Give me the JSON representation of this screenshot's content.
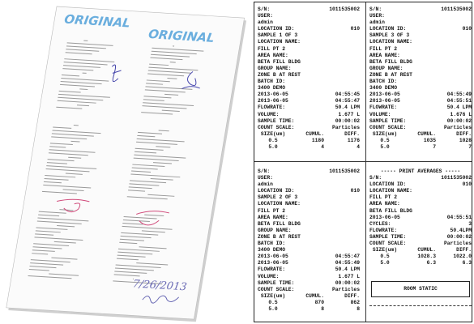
{
  "photo": {
    "stamps": [
      "ORIGINAL",
      "ORIGINAL"
    ],
    "handwritten_date": "7/26/2013"
  },
  "tickets": [
    {
      "lines": [
        [
          "S/N:",
          "1011535002"
        ],
        [
          "USER:"
        ],
        [
          "admin"
        ],
        [
          "LOCATION ID:",
          "010"
        ],
        [
          "SAMPLE 1 OF 3"
        ],
        [
          "LOCATION NAME:"
        ],
        [
          "FILL PT 2"
        ],
        [
          "AREA NAME:"
        ],
        [
          "BETA FILL BLDG"
        ],
        [
          "GROUP NAME:"
        ],
        [
          "ZONE B AT REST"
        ],
        [
          "BATCH ID:"
        ],
        [
          "3400 DEMO"
        ],
        [
          "2013-06-05",
          "04:55:45"
        ],
        [
          "2013-06-05",
          "04:55:47"
        ],
        [
          "FLOWRATE:",
          "50.4 LPM"
        ],
        [
          "VOLUME:",
          "1.677 L"
        ],
        [
          "SAMPLE TIME:",
          "00:00:02"
        ],
        [
          "COUNT SCALE:",
          "Particles"
        ],
        [
          "SIZE(um)",
          "CUMUL.",
          "DIFF."
        ],
        [
          "0.5",
          "1180",
          "1176"
        ],
        [
          "5.0",
          "4",
          "4"
        ]
      ]
    },
    {
      "lines": [
        [
          "S/N:",
          "1011535002"
        ],
        [
          "USER:"
        ],
        [
          "admin"
        ],
        [
          "LOCATION ID:",
          "010"
        ],
        [
          "SAMPLE 3 OF 3"
        ],
        [
          "LOCATION NAME:"
        ],
        [
          "FILL PT 2"
        ],
        [
          "AREA NAME:"
        ],
        [
          "BETA FILL BLDG"
        ],
        [
          "GROUP NAME:"
        ],
        [
          "ZONE B AT REST"
        ],
        [
          "BATCH ID:"
        ],
        [
          "3400 DEMO"
        ],
        [
          "2013-06-05",
          "04:55:49"
        ],
        [
          "2013-06-05",
          "04:55:51"
        ],
        [
          "FLOWRATE:",
          "50.4 LPM"
        ],
        [
          "VOLUME:",
          "1.676 L"
        ],
        [
          "SAMPLE TIME:",
          "00:00:02"
        ],
        [
          "COUNT SCALE:",
          "Particles"
        ],
        [
          "SIZE(um)",
          "CUMUL.",
          "DIFF."
        ],
        [
          "0.5",
          "1035",
          "1028"
        ],
        [
          "5.0",
          "7",
          "7"
        ]
      ]
    },
    {
      "lines": [
        [
          "S/N:",
          "1011535002"
        ],
        [
          "USER:"
        ],
        [
          "admin"
        ],
        [
          "LOCATION ID:",
          "010"
        ],
        [
          "SAMPLE 2 OF 3"
        ],
        [
          "LOCATION NAME:"
        ],
        [
          "FILL PT 2"
        ],
        [
          "AREA NAME:"
        ],
        [
          "BETA FILL BLDG"
        ],
        [
          "GROUP NAME:"
        ],
        [
          "ZONE B AT REST"
        ],
        [
          "BATCH ID:"
        ],
        [
          "3400 DEMO"
        ],
        [
          "2013-06-05",
          "04:55:47"
        ],
        [
          "2013-06-05",
          "04:55:49"
        ],
        [
          "FLOWRATE:",
          "50.4 LPM"
        ],
        [
          "VOLUME:",
          "1.677 L"
        ],
        [
          "SAMPLE TIME:",
          "00:00:02"
        ],
        [
          "COUNT SCALE:",
          "Particles"
        ],
        [
          "SIZE(um)",
          "CUMUL.",
          "DIFF."
        ],
        [
          "0.5",
          "870",
          "862"
        ],
        [
          "5.0",
          "8",
          "8"
        ]
      ]
    },
    {
      "lines": [
        [
          "----- PRINT AVERAGES -----"
        ],
        [
          "S/N:",
          "1011535002"
        ],
        [
          "LOCATION ID:",
          "010"
        ],
        [
          "LOCATION NAME:"
        ],
        [
          "FILL PT 2"
        ],
        [
          "AREA NAME:"
        ],
        [
          "BETA FILL BLDG"
        ],
        [
          "2013-06-05",
          "04:55:51"
        ],
        [
          "CYCLES:",
          "3"
        ],
        [
          "FLOWRATE:",
          "50.4LPM"
        ],
        [
          "SAMPLE TIME:",
          "00:00:02"
        ],
        [
          "COUNT SCALE:",
          "Particles"
        ],
        [
          "SIZE(um)",
          "CUMUL.",
          "DIFF."
        ],
        [
          "0.5",
          "1028.3",
          "1022.0"
        ],
        [
          "5.0",
          "6.3",
          "6.3"
        ]
      ],
      "footer_box": "ROOM STATIC"
    }
  ]
}
